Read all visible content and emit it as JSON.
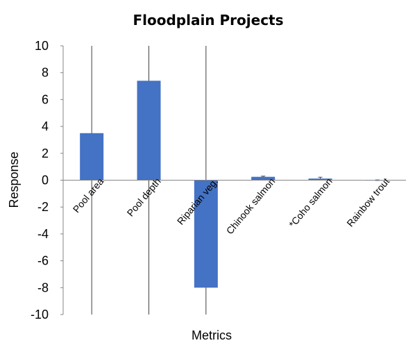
{
  "chart_data": {
    "type": "bar",
    "title": "Floodplain Projects",
    "xlabel": "Metrics",
    "ylabel": "Response",
    "ylim": [
      -10,
      10
    ],
    "yticks": [
      10,
      8,
      6,
      4,
      2,
      0,
      -2,
      -4,
      -6,
      -8,
      -10
    ],
    "yticks_text": [
      "10",
      "8",
      "6",
      "4",
      "2",
      "0",
      "-2",
      "-4",
      "-6",
      "-8",
      "-10"
    ],
    "categories": [
      "Pool area",
      "Pool depth",
      "Riparian veg.",
      "Chinook salmon",
      "*Coho salmon",
      "Rainbow trout"
    ],
    "values": [
      3.5,
      7.4,
      -8.0,
      0.25,
      0.12,
      0.0
    ],
    "error_low": [
      -10,
      -10,
      -10,
      0.2,
      0.02,
      -0.02
    ],
    "error_high": [
      10,
      10,
      10,
      0.3,
      0.22,
      0.02
    ],
    "bar_color": "#4472C4",
    "legend": "none",
    "grid": false
  }
}
